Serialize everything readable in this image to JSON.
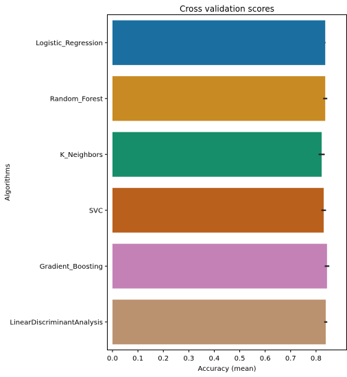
{
  "chart_data": {
    "type": "bar",
    "orientation": "horizontal",
    "title": "Cross validation scores",
    "xlabel": "Accuracy (mean)",
    "ylabel": "Algorithms",
    "xlim": [
      0,
      0.9
    ],
    "xticks": [
      0.0,
      0.1,
      0.2,
      0.3,
      0.4,
      0.5,
      0.6,
      0.7,
      0.8
    ],
    "xtick_labels": [
      "0.0",
      "0.1",
      "0.2",
      "0.3",
      "0.4",
      "0.5",
      "0.6",
      "0.7",
      "0.8"
    ],
    "grid": false,
    "legend": "none",
    "categories": [
      "Logistic_Regression",
      "Random_Forest",
      "K_Neighbors",
      "SVC",
      "Gradient_Boosting",
      "LinearDiscriminantAnalysis"
    ],
    "values": [
      0.836,
      0.836,
      0.822,
      0.83,
      0.843,
      0.838
    ],
    "errors": [
      0.001,
      0.008,
      0.012,
      0.009,
      0.009,
      0.006
    ],
    "colors": [
      "#1a6fa0",
      "#c88a22",
      "#178e6a",
      "#b9601d",
      "#c481b6",
      "#bb9270"
    ],
    "error_color": "#222222"
  }
}
